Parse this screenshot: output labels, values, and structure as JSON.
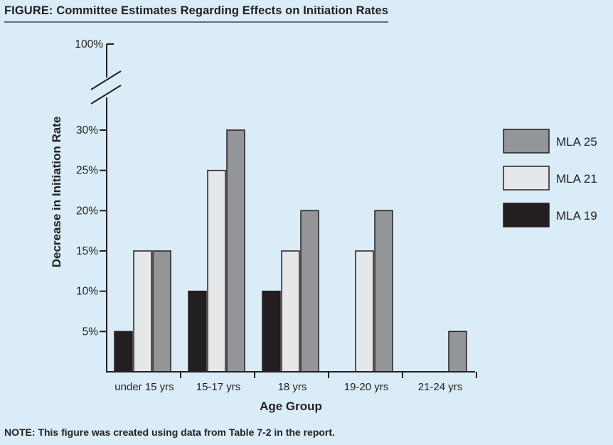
{
  "figure_title": "FIGURE: Committee Estimates Regarding Effects on Initiation Rates",
  "note": "NOTE: This figure was created using data from Table 7-2 in the report.",
  "colors": {
    "MLA 19": "#231f20",
    "MLA 21": "#e6e7e8",
    "MLA 25": "#939598",
    "axis": "#231f20",
    "background": "#d9ecf7"
  },
  "chart_data": {
    "type": "bar",
    "title": "FIGURE: Committee Estimates Regarding Effects on Initiation Rates",
    "xlabel": "Age Group",
    "ylabel": "Decrease in Initiation Rate",
    "categories": [
      "under 15 yrs",
      "15-17 yrs",
      "18 yrs",
      "19-20 yrs",
      "21-24 yrs"
    ],
    "series": [
      {
        "name": "MLA 19",
        "values": [
          5,
          10,
          10,
          0,
          0
        ]
      },
      {
        "name": "MLA 21",
        "values": [
          15,
          25,
          15,
          15,
          0
        ]
      },
      {
        "name": "MLA 25",
        "values": [
          15,
          30,
          20,
          20,
          5
        ]
      }
    ],
    "ylim": [
      0,
      30
    ],
    "yticks": [
      5,
      10,
      15,
      20,
      25,
      30
    ],
    "ytick_labels": [
      "5%",
      "10%",
      "15%",
      "20%",
      "25%",
      "30%"
    ],
    "axis_break": true,
    "break_top_label": "100%",
    "legend_order": [
      "MLA 25",
      "MLA 21",
      "MLA 19"
    ],
    "legend_position": "right",
    "grid": false
  }
}
